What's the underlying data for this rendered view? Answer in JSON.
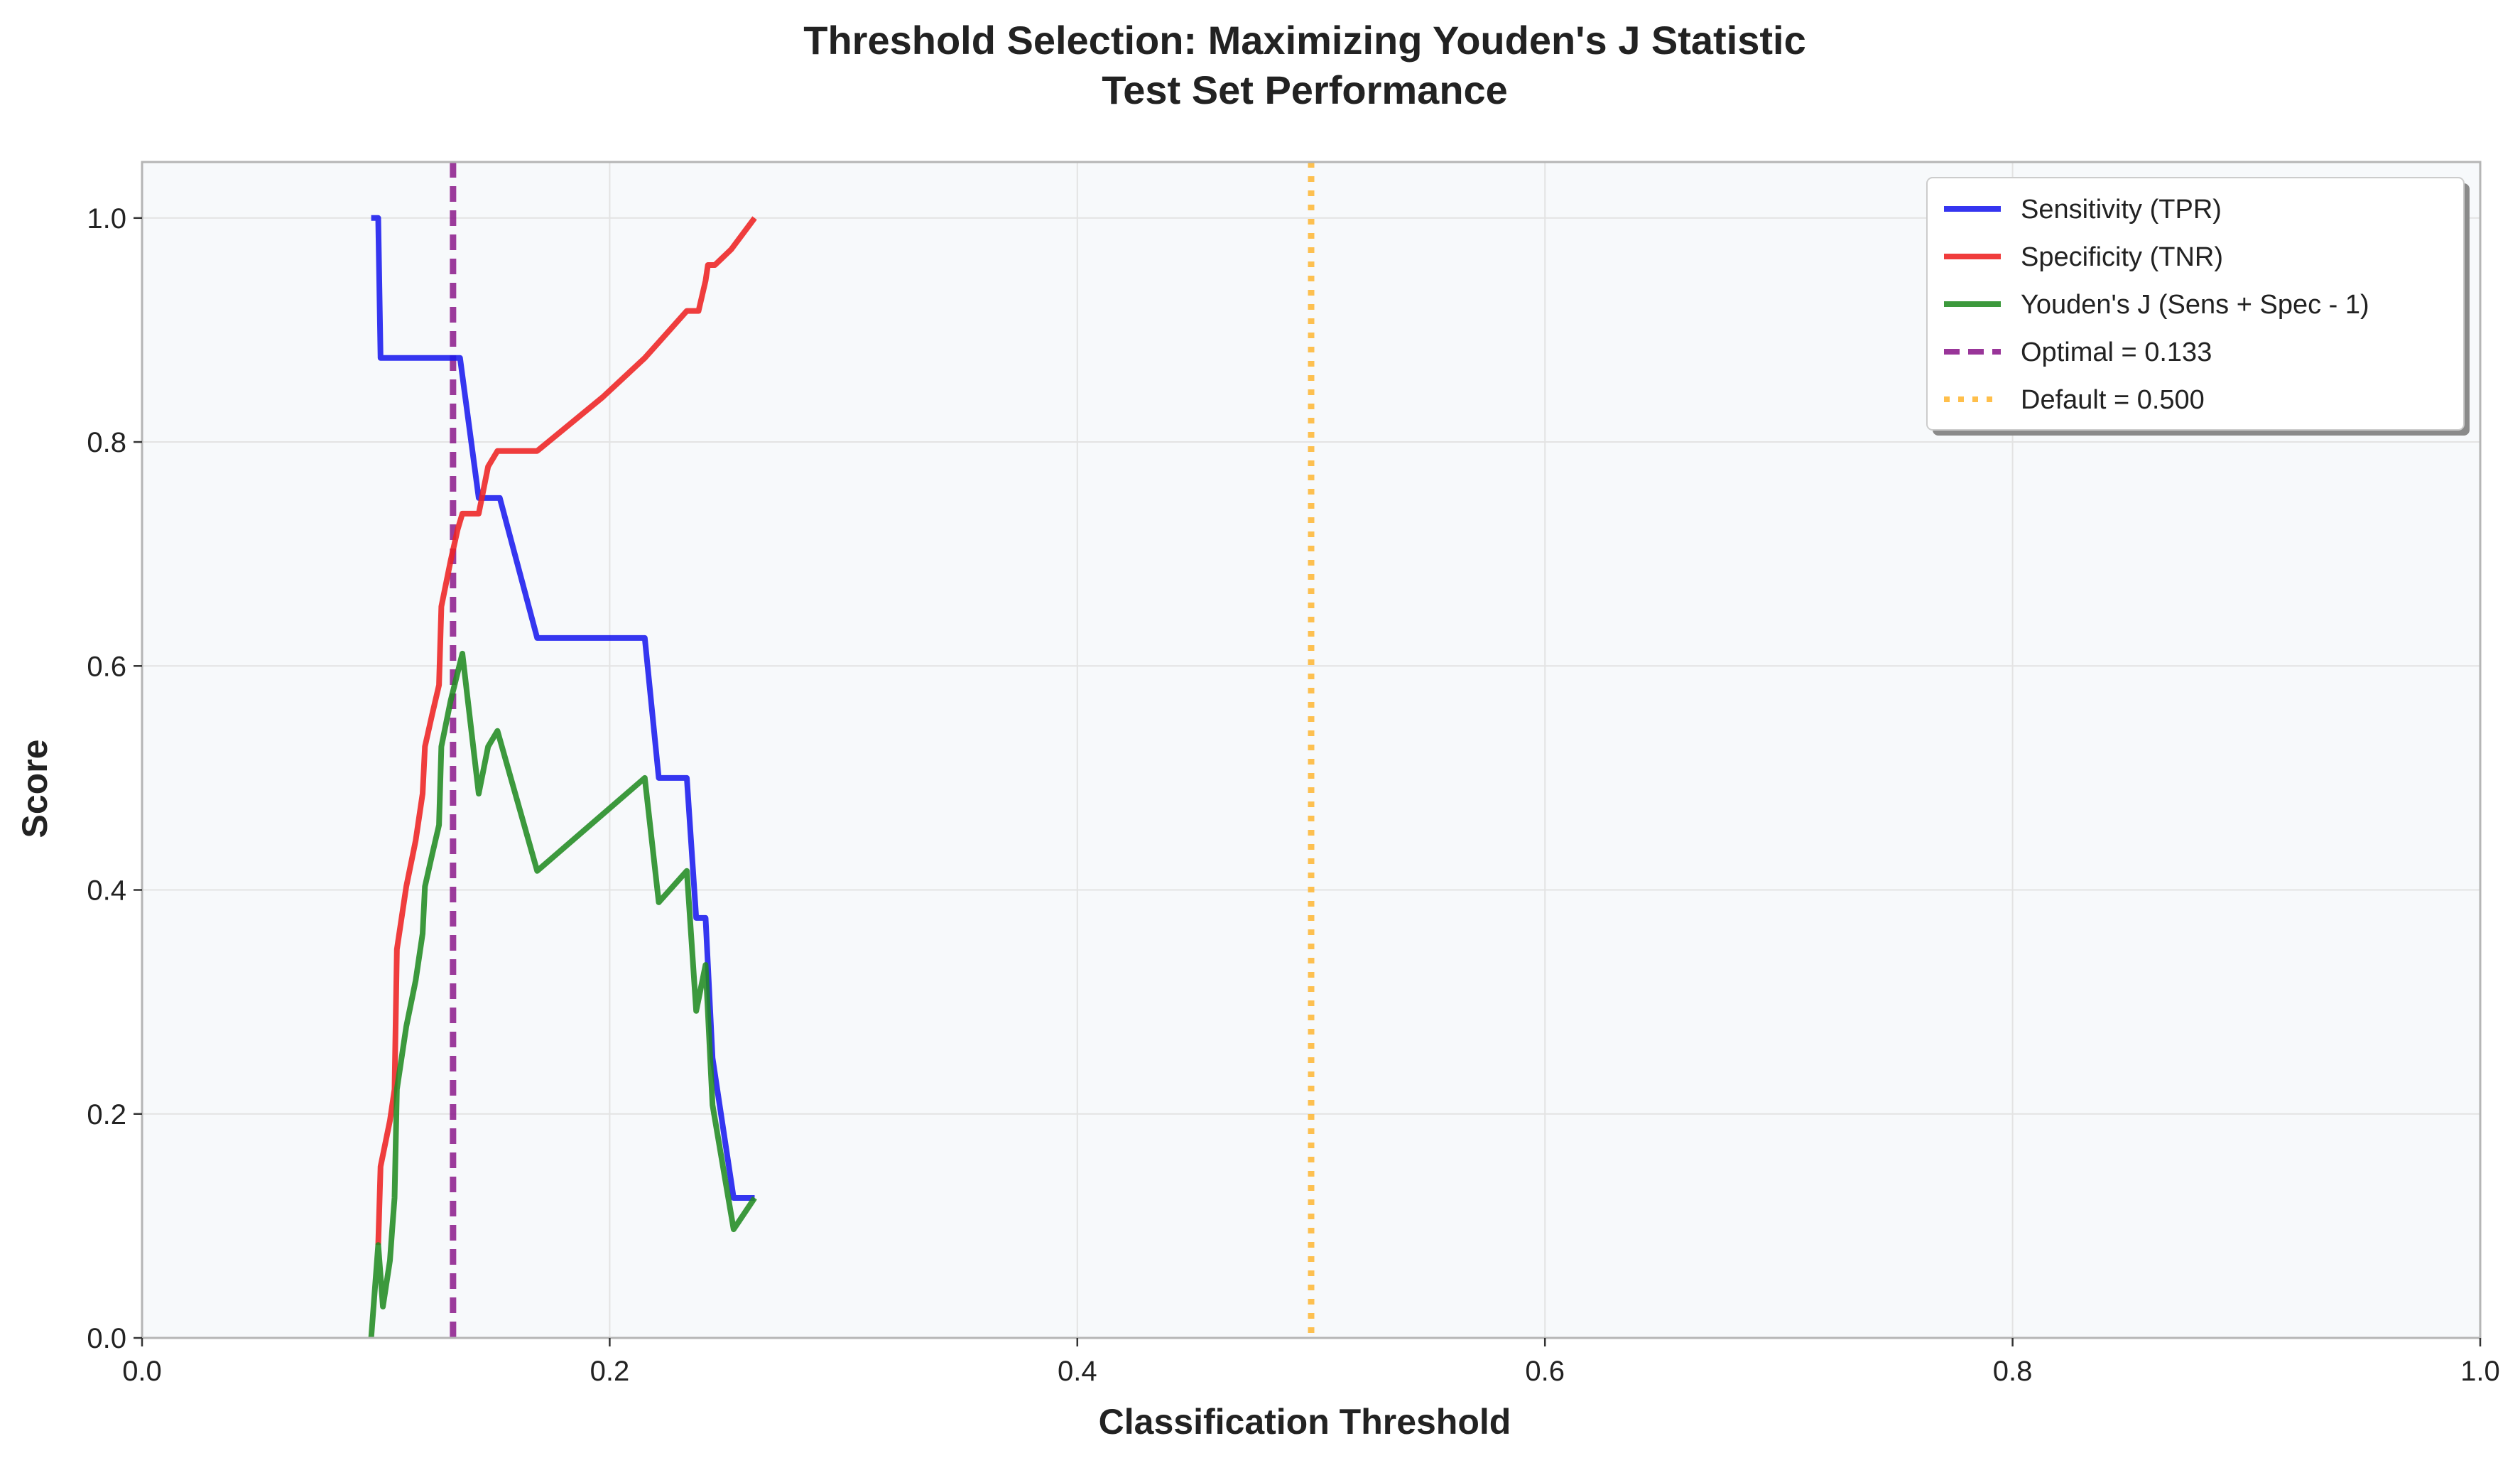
{
  "chart_data": {
    "type": "line",
    "title": "Threshold Selection: Maximizing Youden's J Statistic",
    "subtitle": "Test Set Performance",
    "xlabel": "Classification Threshold",
    "ylabel": "Score",
    "xlim": [
      0.0,
      1.0
    ],
    "ylim": [
      0.0,
      1.05
    ],
    "xticks": [
      "0.0",
      "0.2",
      "0.4",
      "0.6",
      "0.8",
      "1.0"
    ],
    "yticks": [
      "0.0",
      "0.2",
      "0.4",
      "0.6",
      "0.8",
      "1.0"
    ],
    "grid": true,
    "legend_position": "top-right",
    "series": [
      {
        "name": "Sensitivity (TPR)",
        "color": "#1a1aee",
        "style": "solid",
        "points": [
          [
            0.098,
            1.0
          ],
          [
            0.101,
            1.0
          ],
          [
            0.102,
            0.875
          ],
          [
            0.136,
            0.875
          ],
          [
            0.144,
            0.75
          ],
          [
            0.153,
            0.75
          ],
          [
            0.169,
            0.625
          ],
          [
            0.215,
            0.625
          ],
          [
            0.221,
            0.5
          ],
          [
            0.233,
            0.5
          ],
          [
            0.237,
            0.375
          ],
          [
            0.241,
            0.375
          ],
          [
            0.244,
            0.25
          ],
          [
            0.253,
            0.125
          ],
          [
            0.262,
            0.125
          ]
        ]
      },
      {
        "name": "Specificity (TNR)",
        "color": "#ee2222",
        "style": "solid",
        "points": [
          [
            0.101,
            0.083
          ],
          [
            0.102,
            0.153
          ],
          [
            0.106,
            0.194
          ],
          [
            0.108,
            0.222
          ],
          [
            0.109,
            0.347
          ],
          [
            0.113,
            0.403
          ],
          [
            0.117,
            0.444
          ],
          [
            0.12,
            0.486
          ],
          [
            0.121,
            0.528
          ],
          [
            0.124,
            0.556
          ],
          [
            0.127,
            0.583
          ],
          [
            0.128,
            0.653
          ],
          [
            0.132,
            0.694
          ],
          [
            0.135,
            0.722
          ],
          [
            0.137,
            0.736
          ],
          [
            0.144,
            0.736
          ],
          [
            0.148,
            0.778
          ],
          [
            0.152,
            0.792
          ],
          [
            0.169,
            0.792
          ],
          [
            0.197,
            0.84
          ],
          [
            0.215,
            0.875
          ],
          [
            0.221,
            0.889
          ],
          [
            0.233,
            0.917
          ],
          [
            0.238,
            0.917
          ],
          [
            0.241,
            0.944
          ],
          [
            0.242,
            0.958
          ],
          [
            0.245,
            0.958
          ],
          [
            0.252,
            0.972
          ],
          [
            0.262,
            1.0
          ]
        ]
      },
      {
        "name": "Youden's J (Sens + Spec - 1)",
        "color": "#228b22",
        "style": "solid",
        "points": [
          [
            0.098,
            0.0
          ],
          [
            0.101,
            0.083
          ],
          [
            0.103,
            0.028
          ],
          [
            0.106,
            0.069
          ],
          [
            0.107,
            0.097
          ],
          [
            0.108,
            0.125
          ],
          [
            0.109,
            0.222
          ],
          [
            0.113,
            0.278
          ],
          [
            0.117,
            0.319
          ],
          [
            0.12,
            0.361
          ],
          [
            0.121,
            0.403
          ],
          [
            0.124,
            0.431
          ],
          [
            0.127,
            0.458
          ],
          [
            0.128,
            0.528
          ],
          [
            0.132,
            0.569
          ],
          [
            0.137,
            0.611
          ],
          [
            0.144,
            0.486
          ],
          [
            0.148,
            0.528
          ],
          [
            0.152,
            0.542
          ],
          [
            0.169,
            0.417
          ],
          [
            0.215,
            0.5
          ],
          [
            0.221,
            0.389
          ],
          [
            0.233,
            0.417
          ],
          [
            0.237,
            0.292
          ],
          [
            0.241,
            0.333
          ],
          [
            0.244,
            0.208
          ],
          [
            0.253,
            0.097
          ],
          [
            0.262,
            0.125
          ]
        ]
      },
      {
        "name": "Optimal = 0.133",
        "color": "#8b1a8b",
        "style": "dashed",
        "vline": 0.133
      },
      {
        "name": "Default = 0.500",
        "color": "#ffb733",
        "style": "dotted",
        "vline": 0.5
      }
    ]
  }
}
